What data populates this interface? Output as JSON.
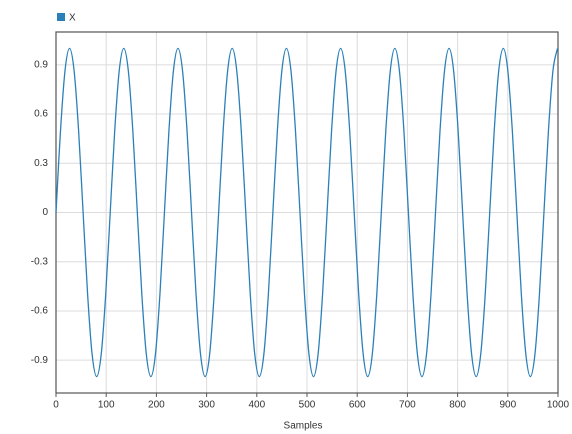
{
  "chart_data": {
    "type": "line",
    "legend": "X",
    "x_label": "Samples",
    "x": [
      0,
      9,
      18,
      27,
      36,
      45,
      54,
      63,
      72,
      81,
      90,
      99,
      108,
      117,
      126,
      135,
      144,
      153,
      162,
      171,
      180,
      189,
      198,
      207,
      216,
      225,
      234,
      243,
      252,
      261,
      270,
      279,
      288,
      297,
      306,
      315,
      324,
      333,
      342,
      351,
      360,
      369,
      378,
      387,
      396,
      405,
      414,
      423,
      432,
      441,
      450,
      459,
      468,
      477,
      486,
      495,
      504,
      513,
      522,
      531,
      540,
      549,
      558,
      567,
      576,
      585,
      594,
      603,
      612,
      621,
      630,
      639,
      648,
      657,
      666,
      675,
      684,
      693,
      702,
      711,
      720,
      729,
      738,
      747,
      756,
      765,
      774,
      783,
      792,
      801,
      810,
      819,
      828,
      837,
      846,
      855,
      864,
      873,
      882,
      891,
      900,
      909,
      918,
      927,
      936,
      945,
      954,
      963,
      972,
      981,
      990,
      999
    ],
    "series": [
      {
        "name": "X",
        "color": "#2b80b9",
        "values": [
          0,
          0.5,
          0.866,
          1,
          0.866,
          0.5,
          0,
          -0.5,
          -0.866,
          -1,
          -0.866,
          -0.5,
          0,
          0.5,
          0.866,
          1,
          0.866,
          0.5,
          0,
          -0.5,
          -0.866,
          -1,
          -0.866,
          -0.5,
          0,
          0.5,
          0.866,
          1,
          0.866,
          0.5,
          0,
          -0.5,
          -0.866,
          -1,
          -0.866,
          -0.5,
          0,
          0.5,
          0.866,
          1,
          0.866,
          0.5,
          0,
          -0.5,
          -0.866,
          -1,
          -0.866,
          -0.5,
          0,
          0.5,
          0.866,
          1,
          0.866,
          0.5,
          0,
          -0.5,
          -0.866,
          -1,
          -0.866,
          -0.5,
          0,
          0.5,
          0.866,
          1,
          0.866,
          0.5,
          0,
          -0.5,
          -0.866,
          -1,
          -0.866,
          -0.5,
          0,
          0.5,
          0.866,
          1,
          0.866,
          0.5,
          0,
          -0.5,
          -0.866,
          -1,
          -0.866,
          -0.5,
          0,
          0.5,
          0.866,
          1,
          0.866,
          0.5,
          0,
          -0.5,
          -0.866,
          -1,
          -0.866,
          -0.5,
          0,
          0.5,
          0.866,
          1,
          0.866,
          0.5,
          0,
          -0.5,
          -0.866,
          -1,
          -0.866,
          -0.5,
          0,
          0.5,
          0.866,
          1
        ]
      }
    ],
    "xlim": [
      0,
      1000
    ],
    "xticks": [
      0,
      100,
      200,
      300,
      400,
      500,
      600,
      700,
      800,
      900,
      1000
    ],
    "ylim": [
      -1.1,
      1.1
    ],
    "yticks": [
      0.9,
      0.6,
      0.3,
      0,
      -0.3,
      -0.6,
      -0.9
    ],
    "grid": true
  }
}
